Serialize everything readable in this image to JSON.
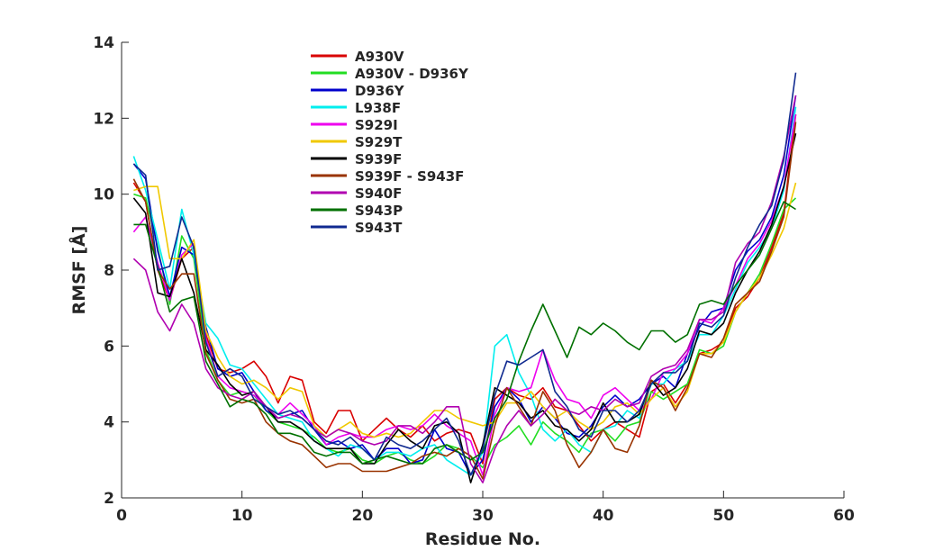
{
  "chart_data": {
    "type": "line",
    "title": "",
    "xlabel": "Residue No.",
    "ylabel": "RMSF [Å]",
    "xlim": [
      0,
      60
    ],
    "ylim": [
      2,
      14
    ],
    "xticks": [
      0,
      10,
      20,
      30,
      40,
      50,
      60
    ],
    "yticks": [
      2,
      4,
      6,
      8,
      10,
      12,
      14
    ],
    "grid": false,
    "legend_position": "top-left",
    "x": [
      1,
      2,
      3,
      4,
      5,
      6,
      7,
      8,
      9,
      10,
      11,
      12,
      13,
      14,
      15,
      16,
      17,
      18,
      19,
      20,
      21,
      22,
      23,
      24,
      25,
      26,
      27,
      28,
      29,
      30,
      31,
      32,
      33,
      34,
      35,
      36,
      37,
      38,
      39,
      40,
      41,
      42,
      43,
      44,
      45,
      46,
      47,
      48,
      49,
      50,
      51,
      52,
      53,
      54,
      55,
      56
    ],
    "series": [
      {
        "name": "A930V",
        "color": "#d90000",
        "values": [
          10.3,
          9.8,
          8.0,
          7.2,
          8.3,
          8.6,
          6.3,
          5.4,
          5.3,
          5.4,
          5.6,
          5.2,
          4.5,
          5.2,
          5.1,
          4.0,
          3.7,
          4.3,
          4.3,
          3.5,
          3.8,
          4.1,
          3.8,
          3.6,
          3.9,
          3.5,
          3.7,
          3.8,
          3.7,
          2.9,
          4.6,
          4.9,
          4.7,
          4.6,
          4.9,
          4.4,
          4.3,
          3.9,
          3.5,
          3.8,
          4.0,
          3.8,
          3.6,
          4.8,
          5.0,
          4.5,
          5.0,
          5.8,
          5.9,
          6.1,
          7.0,
          7.3,
          7.8,
          8.6,
          9.5,
          12.1
        ]
      },
      {
        "name": "A930V - D936Y",
        "color": "#22dd22",
        "values": [
          10.0,
          9.9,
          8.6,
          7.1,
          8.9,
          8.3,
          5.9,
          5.1,
          4.7,
          4.8,
          4.7,
          4.3,
          4.0,
          3.9,
          3.8,
          3.6,
          3.3,
          3.2,
          3.3,
          3.0,
          2.9,
          3.1,
          3.2,
          3.0,
          2.9,
          3.1,
          3.4,
          3.3,
          3.1,
          2.8,
          3.4,
          3.6,
          3.9,
          3.4,
          4.0,
          3.7,
          3.5,
          3.2,
          3.7,
          3.8,
          3.5,
          3.9,
          4.0,
          4.8,
          4.6,
          4.8,
          5.0,
          5.9,
          5.8,
          6.0,
          6.9,
          7.4,
          7.9,
          8.7,
          9.6,
          9.9
        ]
      },
      {
        "name": "D936Y",
        "color": "#0000cc",
        "values": [
          10.8,
          10.4,
          8.5,
          7.3,
          8.6,
          8.4,
          6.5,
          5.4,
          5.2,
          5.3,
          4.8,
          4.3,
          4.1,
          4.2,
          4.3,
          3.8,
          3.4,
          3.5,
          3.3,
          3.4,
          3.0,
          3.3,
          3.3,
          2.9,
          3.0,
          3.8,
          3.3,
          3.2,
          2.6,
          3.0,
          4.4,
          4.9,
          4.6,
          4.0,
          4.4,
          4.1,
          3.7,
          3.6,
          3.9,
          4.4,
          4.7,
          4.4,
          4.6,
          5.0,
          5.2,
          4.9,
          5.8,
          6.5,
          6.9,
          7.0,
          8.0,
          8.5,
          8.8,
          9.4,
          10.5,
          12.6
        ]
      },
      {
        "name": "L938F",
        "color": "#00eeee",
        "values": [
          11.0,
          10.1,
          8.8,
          7.5,
          9.6,
          8.4,
          6.6,
          6.2,
          5.5,
          5.4,
          5.0,
          4.6,
          4.2,
          4.1,
          4.0,
          3.5,
          3.3,
          3.1,
          3.4,
          3.3,
          3.0,
          3.2,
          3.2,
          3.1,
          3.3,
          3.4,
          3.0,
          2.8,
          2.6,
          3.2,
          6.0,
          6.3,
          5.3,
          4.7,
          3.8,
          3.5,
          3.8,
          3.4,
          3.2,
          3.8,
          3.9,
          4.3,
          4.1,
          5.0,
          5.0,
          5.4,
          5.6,
          6.3,
          6.3,
          6.8,
          7.5,
          8.2,
          8.6,
          9.1,
          10.1,
          12.3
        ]
      },
      {
        "name": "S929I",
        "color": "#ee00ee",
        "values": [
          9.0,
          9.4,
          8.2,
          7.2,
          8.4,
          8.7,
          6.2,
          5.2,
          4.9,
          4.8,
          4.7,
          4.4,
          4.2,
          4.5,
          4.2,
          3.9,
          3.4,
          3.6,
          3.7,
          3.6,
          3.6,
          3.8,
          3.9,
          3.8,
          3.9,
          4.2,
          3.9,
          3.7,
          3.5,
          2.6,
          4.2,
          4.9,
          4.8,
          4.9,
          5.9,
          5.1,
          4.6,
          4.5,
          4.1,
          4.7,
          4.9,
          4.6,
          4.3,
          4.6,
          5.3,
          5.4,
          5.8,
          6.7,
          6.6,
          7.0,
          7.6,
          8.3,
          8.7,
          9.3,
          10.2,
          12.1
        ]
      },
      {
        "name": "S929T",
        "color": "#f0c800",
        "values": [
          10.1,
          10.2,
          10.2,
          8.3,
          8.3,
          8.8,
          6.4,
          5.7,
          5.2,
          5.0,
          5.1,
          4.9,
          4.6,
          4.9,
          4.8,
          3.9,
          3.6,
          3.8,
          4.0,
          3.7,
          3.6,
          3.7,
          3.6,
          3.7,
          4.0,
          4.3,
          4.3,
          4.1,
          4.0,
          3.9,
          4.0,
          4.5,
          4.5,
          4.8,
          4.4,
          4.1,
          4.3,
          4.0,
          3.8,
          4.0,
          4.4,
          4.5,
          4.2,
          4.6,
          4.9,
          4.4,
          4.8,
          5.8,
          5.8,
          6.1,
          6.9,
          7.4,
          7.8,
          8.4,
          9.1,
          10.3
        ]
      },
      {
        "name": "S939F",
        "color": "#000000",
        "values": [
          9.9,
          9.5,
          7.4,
          7.3,
          8.3,
          7.4,
          5.9,
          5.5,
          5.0,
          4.7,
          4.8,
          4.4,
          4.0,
          4.0,
          3.8,
          3.5,
          3.3,
          3.3,
          3.3,
          2.9,
          2.9,
          3.4,
          3.8,
          3.5,
          3.3,
          3.9,
          4.0,
          3.7,
          2.4,
          3.4,
          4.9,
          4.7,
          4.5,
          4.1,
          4.3,
          3.9,
          3.8,
          3.5,
          3.8,
          4.5,
          4.0,
          4.0,
          4.2,
          5.1,
          4.7,
          4.9,
          5.4,
          6.4,
          6.3,
          6.6,
          7.4,
          8.0,
          8.5,
          9.2,
          10.2,
          11.6
        ]
      },
      {
        "name": "S939F - S943F",
        "color": "#993300",
        "values": [
          10.4,
          9.8,
          8.0,
          7.5,
          7.9,
          7.9,
          5.8,
          5.1,
          4.6,
          4.5,
          4.6,
          4.0,
          3.7,
          3.5,
          3.4,
          3.1,
          2.8,
          2.9,
          2.9,
          2.7,
          2.7,
          2.7,
          2.8,
          2.9,
          3.1,
          3.2,
          3.1,
          3.3,
          3.1,
          2.5,
          3.9,
          4.9,
          4.4,
          3.9,
          4.8,
          4.3,
          3.4,
          2.8,
          3.2,
          3.8,
          3.3,
          3.2,
          3.9,
          5.1,
          4.9,
          4.3,
          4.9,
          5.8,
          5.7,
          6.2,
          7.1,
          7.4,
          7.7,
          8.5,
          9.4,
          11.9
        ]
      },
      {
        "name": "S940F",
        "color": "#b000b0",
        "values": [
          8.3,
          8.0,
          6.9,
          6.4,
          7.1,
          6.6,
          5.4,
          4.9,
          4.7,
          4.6,
          4.8,
          4.4,
          4.1,
          4.2,
          4.1,
          3.8,
          3.6,
          3.8,
          3.7,
          3.5,
          3.4,
          3.5,
          3.9,
          3.9,
          3.7,
          4.0,
          4.4,
          4.4,
          2.9,
          2.4,
          3.3,
          3.9,
          4.3,
          3.9,
          4.2,
          4.6,
          4.3,
          4.2,
          4.4,
          4.3,
          4.6,
          4.4,
          4.5,
          5.2,
          5.4,
          5.5,
          5.9,
          6.7,
          6.7,
          6.9,
          8.2,
          8.7,
          9.0,
          9.8,
          11.0,
          12.6
        ]
      },
      {
        "name": "S943P",
        "color": "#007000",
        "values": [
          9.2,
          9.2,
          8.1,
          6.9,
          7.2,
          7.3,
          5.6,
          5.0,
          4.4,
          4.6,
          4.5,
          4.2,
          3.7,
          3.7,
          3.6,
          3.2,
          3.1,
          3.2,
          3.2,
          2.9,
          3.0,
          3.1,
          3.0,
          2.9,
          2.9,
          3.3,
          3.4,
          3.2,
          3.0,
          3.2,
          4.1,
          4.6,
          5.6,
          6.4,
          7.1,
          6.4,
          5.7,
          6.5,
          6.3,
          6.6,
          6.4,
          6.1,
          5.9,
          6.4,
          6.4,
          6.1,
          6.3,
          7.1,
          7.2,
          7.1,
          7.6,
          8.0,
          8.4,
          9.1,
          9.8,
          9.6
        ]
      },
      {
        "name": "S943T",
        "color": "#102a90",
        "values": [
          10.8,
          10.5,
          8.0,
          8.1,
          9.4,
          8.6,
          6.1,
          5.2,
          5.4,
          5.2,
          4.6,
          4.4,
          4.2,
          4.3,
          4.1,
          3.8,
          3.5,
          3.4,
          3.6,
          3.3,
          3.0,
          3.6,
          3.4,
          3.3,
          3.5,
          3.8,
          4.1,
          3.5,
          2.6,
          3.3,
          4.7,
          5.6,
          5.5,
          5.7,
          5.9,
          4.8,
          4.4,
          3.8,
          3.6,
          4.3,
          4.3,
          4.0,
          4.3,
          5.0,
          5.3,
          5.3,
          5.6,
          6.6,
          6.5,
          6.8,
          7.8,
          8.6,
          9.2,
          9.7,
          10.9,
          13.2
        ]
      }
    ]
  }
}
